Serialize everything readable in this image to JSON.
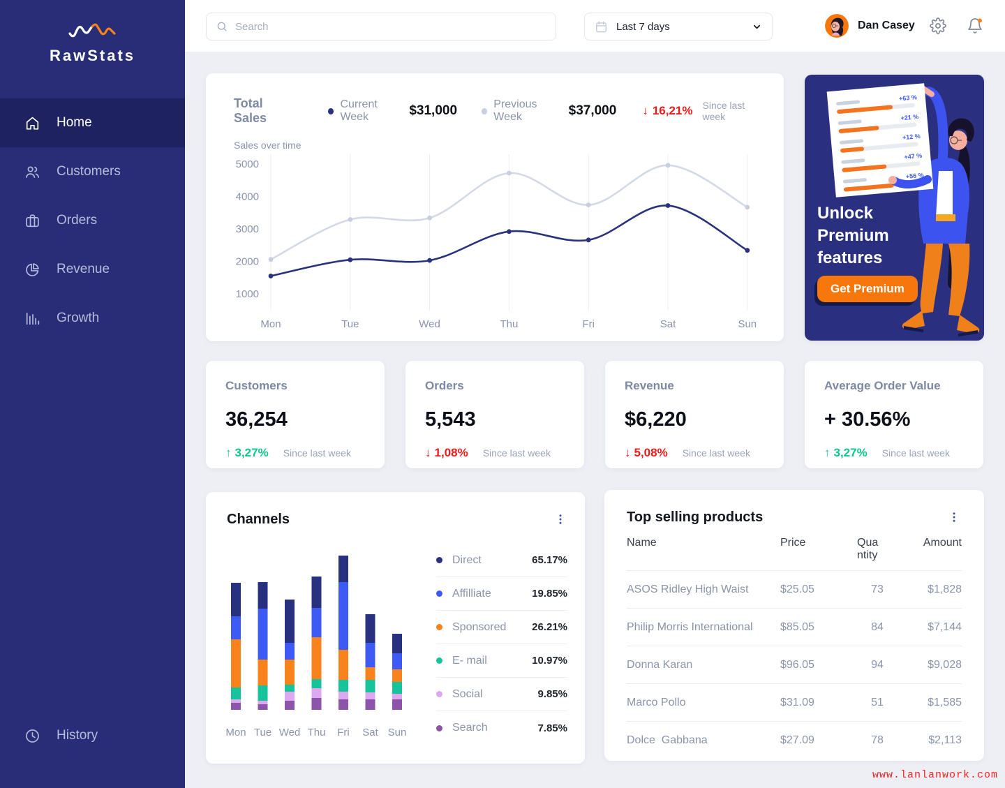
{
  "sidebar": {
    "brand": "RawStats",
    "items": [
      {
        "label": "Home",
        "icon": "home",
        "active": true
      },
      {
        "label": "Customers",
        "icon": "users",
        "active": false
      },
      {
        "label": "Orders",
        "icon": "briefcase",
        "active": false
      },
      {
        "label": "Revenue",
        "icon": "pie",
        "active": false
      },
      {
        "label": "Growth",
        "icon": "bars",
        "active": false
      }
    ],
    "footer_item": {
      "label": "History",
      "icon": "clock",
      "active": false
    }
  },
  "topbar": {
    "search_placeholder": "Search",
    "date_range": "Last 7 days",
    "user_name": "Dan Casey"
  },
  "premium": {
    "title_lines": [
      "Unlock",
      "Premium",
      "features"
    ],
    "button": "Get Premium",
    "board_labels": [
      "+63 %",
      "+21 %",
      "+12 %",
      "+47 %",
      "+56 %"
    ]
  },
  "stats": [
    {
      "title": "Customers",
      "value": "36,254",
      "delta": "3,27%",
      "direction": "up",
      "note": "Since last week"
    },
    {
      "title": "Orders",
      "value": "5,543",
      "delta": "1,08%",
      "direction": "down",
      "note": "Since last week"
    },
    {
      "title": "Revenue",
      "value": "$6,220",
      "delta": "5,08%",
      "direction": "down",
      "note": "Since last week"
    },
    {
      "title": "Average Order Value",
      "value": "+ 30.56%",
      "delta": "3,27%",
      "direction": "up",
      "note": "Since last week"
    }
  ],
  "chart_data": [
    {
      "type": "line",
      "title": "Total Sales",
      "subtitle": "Sales over time",
      "x": [
        "Mon",
        "Tue",
        "Wed",
        "Thu",
        "Fri",
        "Sat",
        "Sun"
      ],
      "series": [
        {
          "name": "Current Week",
          "total": "$31,000",
          "color": "#2A317E",
          "values": [
            1550,
            2050,
            2030,
            2920,
            2660,
            3720,
            2340
          ]
        },
        {
          "name": "Previous Week",
          "total": "$37,000",
          "color": "#D3DAE6",
          "marker": "#C7CFDD",
          "values": [
            2060,
            3290,
            3340,
            4720,
            3740,
            4960,
            3670
          ]
        }
      ],
      "ylim": [
        1000,
        5000
      ],
      "yticks": [
        5000,
        4000,
        3000,
        2000,
        1000
      ],
      "grid": "vertical",
      "legend_position": "top",
      "delta": {
        "value": "16,21%",
        "direction": "down",
        "note": "Since last week"
      }
    },
    {
      "type": "bar-stacked",
      "title": "Channels",
      "categories": [
        "Mon",
        "Tue",
        "Wed",
        "Thu",
        "Fri",
        "Sat",
        "Sun"
      ],
      "series": [
        {
          "name": "Search",
          "color": "#8C55A9",
          "share": "7.85%",
          "values": [
            10,
            8,
            13,
            17,
            15,
            15,
            15
          ]
        },
        {
          "name": "Social",
          "color": "#DCA9F0",
          "share": "9.85%",
          "values": [
            5,
            5,
            13,
            14,
            11,
            10,
            8
          ]
        },
        {
          "name": "E- mail",
          "color": "#17C39B",
          "share": "10.97%",
          "values": [
            17,
            22,
            10,
            13,
            17,
            18,
            17
          ]
        },
        {
          "name": "Sponsored",
          "color": "#F8821B",
          "share": "26.21%",
          "values": [
            69,
            37,
            36,
            60,
            43,
            18,
            18
          ]
        },
        {
          "name": "Affilliate",
          "color": "#3D5BF4",
          "share": "19.85%",
          "values": [
            33,
            73,
            24,
            42,
            97,
            35,
            23
          ]
        },
        {
          "name": "Direct",
          "color": "#283180",
          "share": "65.17%",
          "values": [
            48,
            38,
            62,
            45,
            38,
            41,
            28
          ]
        }
      ],
      "legend_position": "right"
    }
  ],
  "channels_legend": [
    {
      "label": "Direct",
      "value": "65.17%",
      "color": "#283180"
    },
    {
      "label": "Affilliate",
      "value": "19.85%",
      "color": "#3D5BF4"
    },
    {
      "label": "Sponsored",
      "value": "26.21%",
      "color": "#F8821B"
    },
    {
      "label": "E- mail",
      "value": "10.97%",
      "color": "#17C39B"
    },
    {
      "label": "Social",
      "value": "9.85%",
      "color": "#DCA9F0"
    },
    {
      "label": "Search",
      "value": "7.85%",
      "color": "#8C55A9"
    }
  ],
  "products": {
    "title": "Top selling products",
    "columns": [
      "Name",
      "Price",
      "Qua ntity",
      "Amount"
    ],
    "rows": [
      [
        "ASOS Ridley High Waist",
        "$25.05",
        "73",
        "$1,828"
      ],
      [
        "Philip Morris International",
        "$85.05",
        "84",
        "$7,144"
      ],
      [
        "Donna Karan",
        "$96.05",
        "94",
        "$9,028"
      ],
      [
        "Marco Pollo",
        "$31.09",
        "51",
        "$1,585"
      ],
      [
        "Dolce  Gabbana",
        "$27.09",
        "78",
        "$2,113"
      ]
    ]
  },
  "watermark": "www.lanlanwork.com"
}
